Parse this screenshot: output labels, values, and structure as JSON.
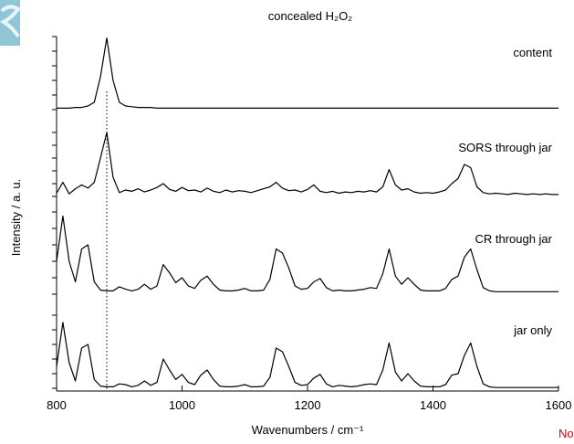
{
  "chart_data": {
    "type": "line",
    "title": "concealed H₂O₂",
    "xlabel": "Wavenumbers / cm⁻¹",
    "ylabel": "Intensity / a. u.",
    "footer_note": "No",
    "reference_line_x": 880,
    "xlim": [
      800,
      1600
    ],
    "xticks": [
      800,
      1000,
      1200,
      1400,
      1600
    ],
    "x": [
      800,
      810,
      820,
      830,
      840,
      850,
      860,
      870,
      880,
      890,
      900,
      910,
      920,
      930,
      940,
      950,
      960,
      970,
      980,
      990,
      1000,
      1010,
      1020,
      1030,
      1040,
      1050,
      1060,
      1070,
      1080,
      1090,
      1100,
      1110,
      1120,
      1130,
      1140,
      1150,
      1160,
      1170,
      1180,
      1190,
      1200,
      1210,
      1220,
      1230,
      1240,
      1250,
      1260,
      1270,
      1280,
      1290,
      1300,
      1310,
      1320,
      1330,
      1340,
      1350,
      1360,
      1370,
      1380,
      1390,
      1400,
      1410,
      1420,
      1430,
      1440,
      1450,
      1460,
      1470,
      1480,
      1490,
      1500,
      1510,
      1520,
      1530,
      1540,
      1550,
      1560,
      1570,
      1580,
      1590,
      1600
    ],
    "series": [
      {
        "name": "content",
        "color": "#000000",
        "ylim": [
          0,
          1
        ],
        "yticks": [
          0,
          0.2,
          0.4,
          0.6,
          0.8,
          1
        ],
        "values": [
          0.02,
          0.02,
          0.02,
          0.03,
          0.03,
          0.05,
          0.1,
          0.45,
          0.98,
          0.4,
          0.1,
          0.05,
          0.04,
          0.03,
          0.03,
          0.03,
          0.02,
          0.02,
          0.02,
          0.02,
          0.02,
          0.02,
          0.02,
          0.02,
          0.02,
          0.02,
          0.02,
          0.02,
          0.02,
          0.02,
          0.02,
          0.02,
          0.02,
          0.02,
          0.02,
          0.02,
          0.02,
          0.02,
          0.02,
          0.02,
          0.02,
          0.02,
          0.02,
          0.02,
          0.02,
          0.02,
          0.02,
          0.02,
          0.02,
          0.02,
          0.02,
          0.02,
          0.02,
          0.02,
          0.02,
          0.02,
          0.02,
          0.02,
          0.02,
          0.02,
          0.02,
          0.02,
          0.02,
          0.02,
          0.02,
          0.02,
          0.02,
          0.02,
          0.02,
          0.02,
          0.02,
          0.02,
          0.02,
          0.02,
          0.02,
          0.02,
          0.02,
          0.02,
          0.02,
          0.02,
          0.02
        ]
      },
      {
        "name": "SORS through jar",
        "color": "#000000",
        "ylim": [
          0,
          1
        ],
        "yticks": [
          0,
          0.2,
          0.4,
          0.6,
          0.8,
          1
        ],
        "values": [
          0.05,
          0.22,
          0.04,
          0.12,
          0.18,
          0.13,
          0.22,
          0.6,
          1.0,
          0.3,
          0.06,
          0.1,
          0.08,
          0.12,
          0.07,
          0.1,
          0.14,
          0.2,
          0.11,
          0.08,
          0.14,
          0.09,
          0.1,
          0.07,
          0.13,
          0.08,
          0.06,
          0.1,
          0.07,
          0.09,
          0.08,
          0.06,
          0.09,
          0.12,
          0.15,
          0.22,
          0.13,
          0.09,
          0.1,
          0.07,
          0.11,
          0.18,
          0.08,
          0.06,
          0.08,
          0.05,
          0.07,
          0.06,
          0.08,
          0.07,
          0.09,
          0.07,
          0.15,
          0.42,
          0.18,
          0.1,
          0.12,
          0.07,
          0.05,
          0.06,
          0.05,
          0.07,
          0.1,
          0.2,
          0.28,
          0.5,
          0.45,
          0.15,
          0.06,
          0.04,
          0.05,
          0.04,
          0.03,
          0.05,
          0.04,
          0.03,
          0.04,
          0.03,
          0.04,
          0.03,
          0.03
        ]
      },
      {
        "name": "CR through jar",
        "color": "#000000",
        "ylim": [
          0,
          1
        ],
        "yticks": [
          0,
          0.2,
          0.4,
          0.6,
          0.8,
          1
        ],
        "values": [
          0.4,
          0.95,
          0.4,
          0.15,
          0.55,
          0.6,
          0.15,
          0.05,
          0.04,
          0.04,
          0.09,
          0.06,
          0.04,
          0.06,
          0.12,
          0.06,
          0.1,
          0.36,
          0.26,
          0.14,
          0.2,
          0.1,
          0.07,
          0.17,
          0.22,
          0.12,
          0.05,
          0.04,
          0.04,
          0.05,
          0.07,
          0.04,
          0.04,
          0.05,
          0.18,
          0.55,
          0.5,
          0.32,
          0.1,
          0.06,
          0.07,
          0.15,
          0.19,
          0.08,
          0.04,
          0.05,
          0.04,
          0.04,
          0.05,
          0.06,
          0.08,
          0.07,
          0.25,
          0.55,
          0.22,
          0.12,
          0.2,
          0.12,
          0.05,
          0.04,
          0.04,
          0.04,
          0.07,
          0.18,
          0.22,
          0.45,
          0.55,
          0.3,
          0.08,
          0.04,
          0.03,
          0.03,
          0.03,
          0.03,
          0.03,
          0.03,
          0.03,
          0.03,
          0.03,
          0.03,
          0.03
        ]
      },
      {
        "name": "jar only",
        "color": "#000000",
        "ylim": [
          0,
          1
        ],
        "yticks": [
          0,
          0.2,
          0.4,
          0.6,
          0.8,
          1
        ],
        "values": [
          0.3,
          0.9,
          0.35,
          0.1,
          0.55,
          0.6,
          0.12,
          0.03,
          0.02,
          0.02,
          0.06,
          0.05,
          0.02,
          0.04,
          0.1,
          0.04,
          0.08,
          0.4,
          0.25,
          0.12,
          0.19,
          0.08,
          0.05,
          0.18,
          0.25,
          0.12,
          0.03,
          0.02,
          0.02,
          0.03,
          0.05,
          0.02,
          0.02,
          0.03,
          0.15,
          0.55,
          0.5,
          0.3,
          0.08,
          0.04,
          0.05,
          0.14,
          0.19,
          0.06,
          0.02,
          0.04,
          0.03,
          0.02,
          0.03,
          0.05,
          0.06,
          0.05,
          0.25,
          0.62,
          0.22,
          0.1,
          0.2,
          0.1,
          0.03,
          0.02,
          0.02,
          0.02,
          0.05,
          0.18,
          0.2,
          0.45,
          0.62,
          0.3,
          0.06,
          0.02,
          0.01,
          0.01,
          0.01,
          0.01,
          0.01,
          0.01,
          0.01,
          0.01,
          0.01,
          0.01,
          0.01
        ]
      }
    ]
  }
}
